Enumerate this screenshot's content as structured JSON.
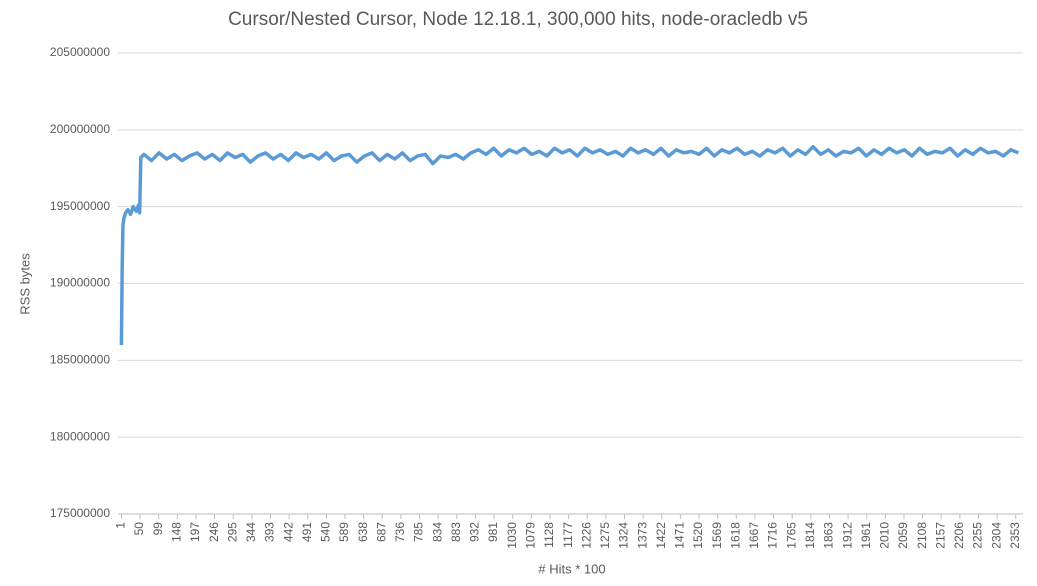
{
  "chart_data": {
    "type": "line",
    "title": "Cursor/Nested Cursor, Node 12.18.1, 300,000 hits, node-oracledb v5",
    "x_label": "# Hits * 100",
    "y_label": "RSS bytes",
    "color": "#5b9bd5",
    "grid": true,
    "x": [
      1,
      3,
      5,
      8,
      12,
      18,
      25,
      32,
      40,
      46,
      49,
      52,
      60,
      80,
      100,
      120,
      140,
      160,
      180,
      200,
      220,
      240,
      260,
      280,
      300,
      320,
      340,
      360,
      380,
      400,
      420,
      440,
      460,
      480,
      500,
      520,
      540,
      560,
      580,
      600,
      620,
      640,
      660,
      680,
      700,
      720,
      740,
      760,
      780,
      800,
      820,
      840,
      860,
      880,
      900,
      920,
      940,
      960,
      980,
      1000,
      1020,
      1040,
      1060,
      1080,
      1100,
      1120,
      1140,
      1160,
      1180,
      1200,
      1220,
      1240,
      1260,
      1280,
      1300,
      1320,
      1340,
      1360,
      1380,
      1400,
      1420,
      1440,
      1460,
      1480,
      1500,
      1520,
      1540,
      1560,
      1580,
      1600,
      1620,
      1640,
      1660,
      1680,
      1700,
      1720,
      1740,
      1760,
      1780,
      1800,
      1820,
      1840,
      1860,
      1880,
      1900,
      1920,
      1940,
      1960,
      1980,
      2000,
      2020,
      2040,
      2060,
      2080,
      2100,
      2120,
      2140,
      2160,
      2180,
      2200,
      2220,
      2240,
      2260,
      2280,
      2300,
      2320,
      2340,
      2360
    ],
    "values": [
      186000000,
      191000000,
      193800000,
      194300000,
      194600000,
      194800000,
      194500000,
      195000000,
      194700000,
      195100000,
      194600000,
      198200000,
      198400000,
      198000000,
      198500000,
      198100000,
      198400000,
      198000000,
      198300000,
      198500000,
      198100000,
      198400000,
      198000000,
      198500000,
      198200000,
      198400000,
      197900000,
      198300000,
      198500000,
      198100000,
      198400000,
      198000000,
      198500000,
      198200000,
      198400000,
      198100000,
      198500000,
      198000000,
      198300000,
      198400000,
      197900000,
      198300000,
      198500000,
      198000000,
      198400000,
      198100000,
      198500000,
      198000000,
      198300000,
      198400000,
      197800000,
      198300000,
      198200000,
      198400000,
      198100000,
      198500000,
      198700000,
      198400000,
      198800000,
      198300000,
      198700000,
      198500000,
      198800000,
      198400000,
      198600000,
      198300000,
      198800000,
      198500000,
      198700000,
      198300000,
      198800000,
      198500000,
      198700000,
      198400000,
      198600000,
      198300000,
      198800000,
      198500000,
      198700000,
      198400000,
      198800000,
      198300000,
      198700000,
      198500000,
      198600000,
      198400000,
      198800000,
      198300000,
      198700000,
      198500000,
      198800000,
      198400000,
      198600000,
      198300000,
      198700000,
      198500000,
      198800000,
      198300000,
      198700000,
      198400000,
      198900000,
      198400000,
      198700000,
      198300000,
      198600000,
      198500000,
      198800000,
      198300000,
      198700000,
      198400000,
      198800000,
      198500000,
      198700000,
      198300000,
      198800000,
      198400000,
      198600000,
      198500000,
      198800000,
      198300000,
      198700000,
      198400000,
      198800000,
      198500000,
      198600000,
      198300000,
      198700000,
      198500000
    ],
    "xlim": [
      -8,
      2372
    ],
    "xticks": [
      1,
      50,
      99,
      148,
      197,
      246,
      295,
      344,
      393,
      442,
      491,
      540,
      589,
      638,
      687,
      736,
      785,
      834,
      883,
      932,
      981,
      1030,
      1079,
      1128,
      1177,
      1226,
      1275,
      1324,
      1373,
      1422,
      1471,
      1520,
      1569,
      1618,
      1667,
      1716,
      1765,
      1814,
      1863,
      1912,
      1961,
      2010,
      2059,
      2108,
      2157,
      2206,
      2255,
      2304,
      2353
    ],
    "ylim": [
      175000000,
      205000000
    ],
    "yticks": [
      175000000,
      180000000,
      185000000,
      190000000,
      195000000,
      200000000,
      205000000
    ]
  }
}
